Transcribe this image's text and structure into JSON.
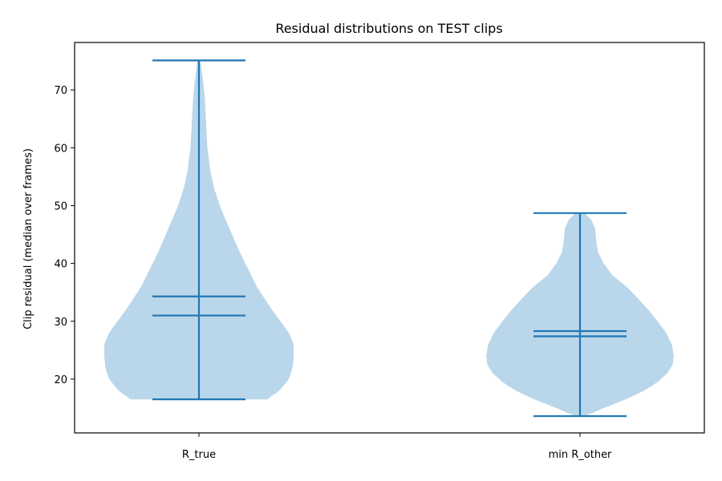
{
  "chart_data": {
    "type": "violin",
    "title": "Residual distributions on TEST clips",
    "xlabel": "",
    "ylabel": "Clip residual (median over frames)",
    "categories": [
      "R_true",
      "min R_other"
    ],
    "ylim": [
      10.7,
      78.2
    ],
    "yticks": [
      20,
      30,
      40,
      50,
      60,
      70
    ],
    "grid": false,
    "colors": {
      "body": "#bad6ea",
      "lines": "#1f77b4"
    },
    "violins": [
      {
        "name": "R_true",
        "min": 16.5,
        "max": 75.1,
        "mean": 34.3,
        "median": 31.0,
        "density": [
          [
            16.5,
            0.72
          ],
          [
            18.0,
            0.85
          ],
          [
            20.0,
            0.95
          ],
          [
            22.0,
            0.99
          ],
          [
            24.0,
            1.0
          ],
          [
            26.0,
            1.0
          ],
          [
            28.0,
            0.95
          ],
          [
            30.0,
            0.86
          ],
          [
            32.0,
            0.77
          ],
          [
            34.0,
            0.69
          ],
          [
            36.0,
            0.61
          ],
          [
            38.0,
            0.55
          ],
          [
            40.0,
            0.49
          ],
          [
            42.0,
            0.43
          ],
          [
            45.0,
            0.35
          ],
          [
            48.0,
            0.27
          ],
          [
            50.0,
            0.22
          ],
          [
            53.0,
            0.16
          ],
          [
            56.0,
            0.12
          ],
          [
            60.0,
            0.09
          ],
          [
            63.0,
            0.08
          ],
          [
            66.0,
            0.07
          ],
          [
            69.0,
            0.06
          ],
          [
            72.0,
            0.04
          ],
          [
            75.1,
            0.015
          ]
        ]
      },
      {
        "name": "min R_other",
        "min": 13.6,
        "max": 48.7,
        "mean": 28.3,
        "median": 27.4,
        "density": [
          [
            13.6,
            0.05
          ],
          [
            15.0,
            0.25
          ],
          [
            16.5,
            0.48
          ],
          [
            18.0,
            0.68
          ],
          [
            19.5,
            0.82
          ],
          [
            21.0,
            0.92
          ],
          [
            22.5,
            0.98
          ],
          [
            24.0,
            0.99
          ],
          [
            26.0,
            0.97
          ],
          [
            28.0,
            0.91
          ],
          [
            30.0,
            0.82
          ],
          [
            32.0,
            0.72
          ],
          [
            34.0,
            0.61
          ],
          [
            36.0,
            0.49
          ],
          [
            38.0,
            0.34
          ],
          [
            40.0,
            0.25
          ],
          [
            42.0,
            0.19
          ],
          [
            44.0,
            0.17
          ],
          [
            46.0,
            0.16
          ],
          [
            47.5,
            0.12
          ],
          [
            48.7,
            0.05
          ]
        ]
      }
    ]
  }
}
